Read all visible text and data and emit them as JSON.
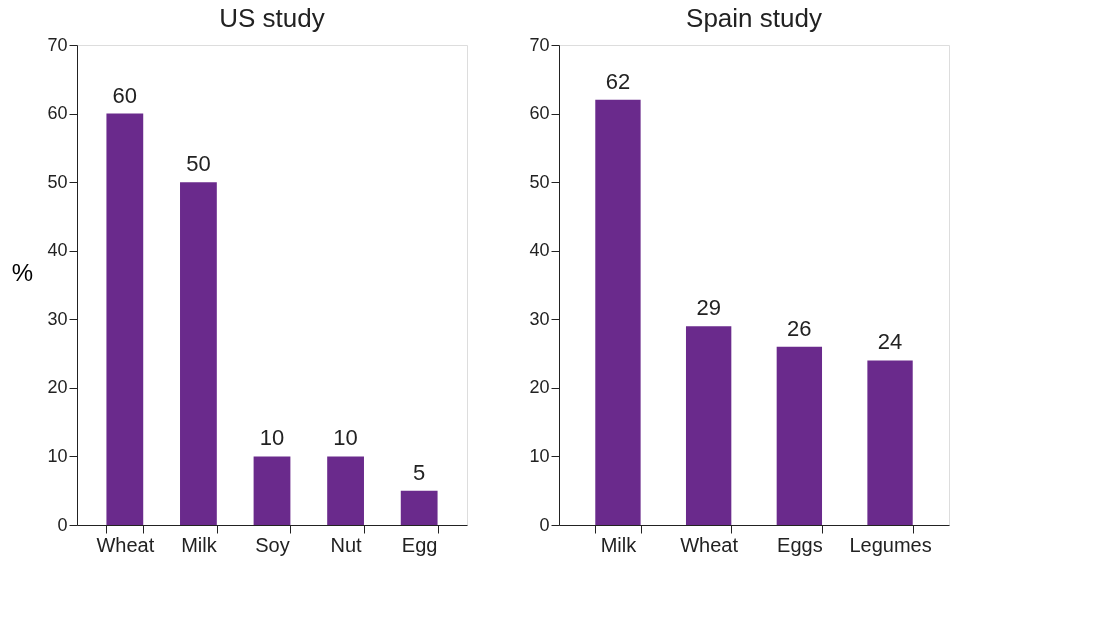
{
  "chart_data": [
    {
      "type": "bar",
      "title": "US study",
      "ylabel": "%",
      "categories": [
        "Wheat",
        "Milk",
        "Soy",
        "Nut",
        "Egg"
      ],
      "values": [
        60,
        50,
        10,
        10,
        5
      ],
      "color": "#6a2a8c",
      "ylim": [
        0,
        70
      ],
      "yticks": [
        0,
        10,
        20,
        30,
        40,
        50,
        60,
        70
      ],
      "data_labels": true,
      "grid": false
    },
    {
      "type": "bar",
      "title": "Spain study",
      "categories": [
        "Milk",
        "Wheat",
        "Eggs",
        "Legumes"
      ],
      "values": [
        62,
        29,
        26,
        24
      ],
      "color": "#6a2a8c",
      "ylim": [
        0,
        70
      ],
      "yticks": [
        0,
        10,
        20,
        30,
        40,
        50,
        60,
        70
      ],
      "data_labels": true,
      "grid": false
    }
  ]
}
